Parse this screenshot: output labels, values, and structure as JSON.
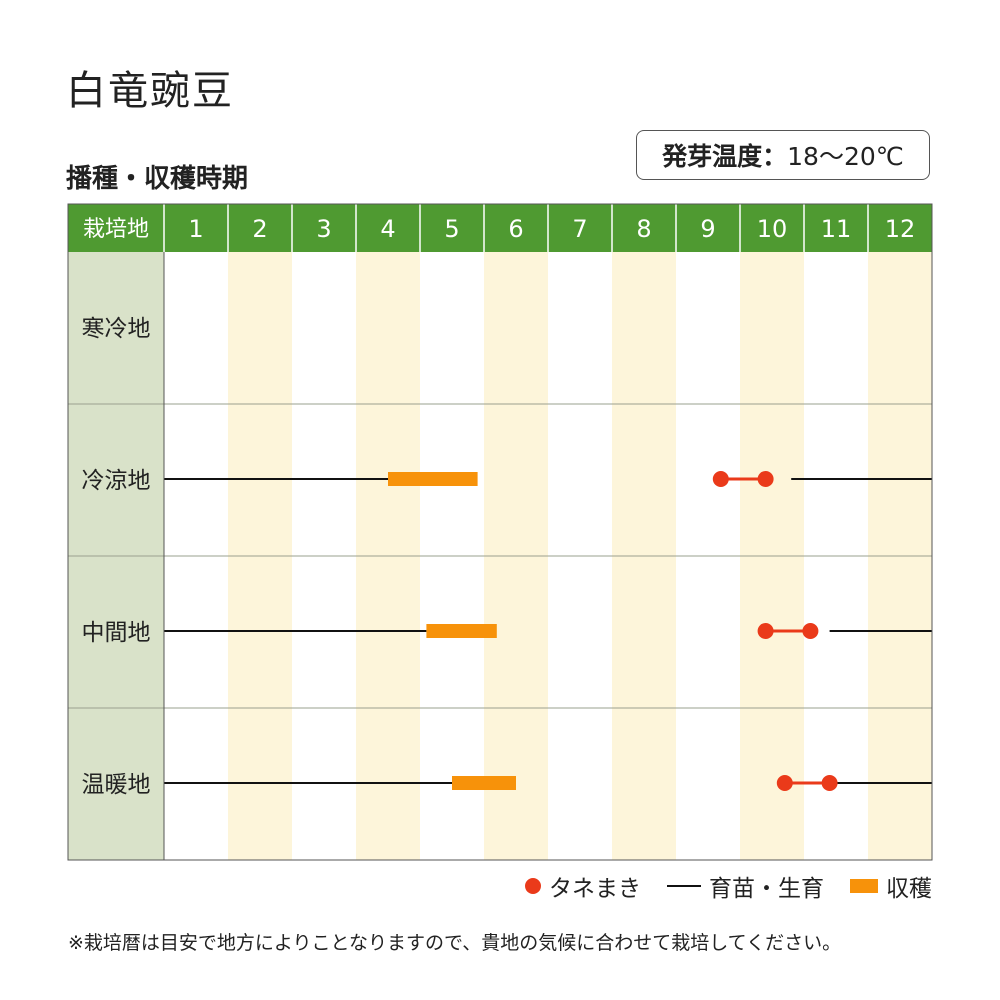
{
  "page": {
    "title": "白竜豌豆",
    "subtitle": "播種・収穫時期",
    "germination_label": "発芽温度：",
    "germination_value": "18〜20℃",
    "footnote": "※栽培暦は目安で地方によりことなりますので、貴地の気候に合わせて栽培してください。"
  },
  "colors": {
    "header_green": "#4f9a31",
    "region_column": "#d9e2c9",
    "month_stripe": "#fdf5da",
    "sowing": "#ea3a1a",
    "harvest": "#f7920a",
    "growing_line": "#111111"
  },
  "chart_data": {
    "type": "gantt",
    "corner_label": "栽培地",
    "months": [
      "1",
      "2",
      "3",
      "4",
      "5",
      "6",
      "7",
      "8",
      "9",
      "10",
      "11",
      "12"
    ],
    "legend": [
      {
        "key": "sowing",
        "label": "タネまき",
        "marker": "dot"
      },
      {
        "key": "growing",
        "label": "育苗・生育",
        "marker": "line"
      },
      {
        "key": "harvest",
        "label": "収穫",
        "marker": "bar"
      }
    ],
    "regions": [
      {
        "name": "寒冷地",
        "growing": [],
        "harvest": null,
        "sowing": null
      },
      {
        "name": "冷涼地",
        "growing": [
          [
            1.0,
            4.5
          ],
          [
            10.8,
            13.0
          ]
        ],
        "harvest": [
          4.5,
          5.9
        ],
        "sowing": [
          9.7,
          10.4
        ]
      },
      {
        "name": "中間地",
        "growing": [
          [
            1.0,
            5.1
          ],
          [
            11.4,
            13.0
          ]
        ],
        "harvest": [
          5.1,
          6.2
        ],
        "sowing": [
          10.4,
          11.1
        ]
      },
      {
        "name": "温暖地",
        "growing": [
          [
            1.0,
            5.5
          ],
          [
            11.4,
            13.0
          ]
        ],
        "harvest": [
          5.5,
          6.5
        ],
        "sowing": [
          10.7,
          11.4
        ]
      }
    ]
  }
}
